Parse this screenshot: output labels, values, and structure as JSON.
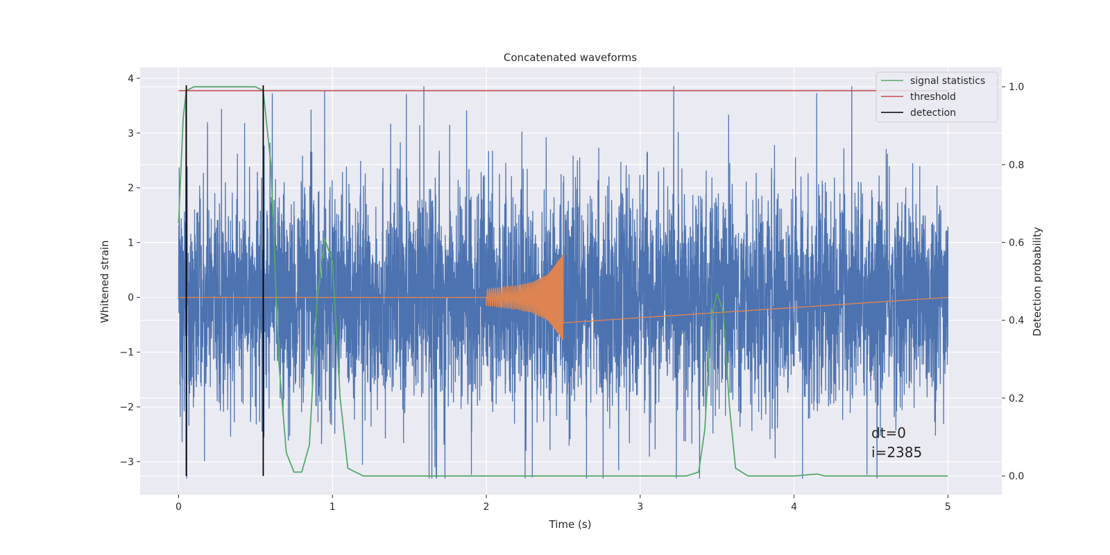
{
  "chart_data": {
    "type": "line",
    "title": "Concatenated waveforms",
    "xlabel": "Time (s)",
    "ylabel": "Whitened strain",
    "y2label": "Detection probability",
    "xlim": [
      -0.25,
      5.35
    ],
    "ylim": [
      -3.6,
      4.2
    ],
    "y2lim": [
      -0.048,
      1.05
    ],
    "xticks": [
      "0",
      "1",
      "2",
      "3",
      "4",
      "5"
    ],
    "yticks": [
      "−3",
      "−2",
      "−1",
      "0",
      "1",
      "2",
      "3",
      "4"
    ],
    "y2ticks": [
      "0.0",
      "0.2",
      "0.4",
      "0.6",
      "0.8",
      "1.0"
    ],
    "grid": true,
    "legend_position": "top-right",
    "annotations": [
      "dt=0",
      "i=2385"
    ],
    "colors": {
      "strain": "#4c72b0",
      "injected": "#dd8452",
      "signal_statistics": "#55a868",
      "threshold": "#c44e52",
      "detection": "#000000",
      "background": "#eaeaf2"
    },
    "series": [
      {
        "id": "strain",
        "description_axis": "left",
        "x_range": [
          0,
          5
        ],
        "amplitude_range": [
          -3.3,
          3.85
        ]
      },
      {
        "id": "injected",
        "description_axis": "left",
        "x": [
          2.0,
          2.1,
          2.2,
          2.3,
          2.4,
          2.45,
          2.5
        ],
        "envelope": [
          0.15,
          0.18,
          0.22,
          0.28,
          0.42,
          0.6,
          0.8
        ]
      },
      {
        "name": "signal statistics",
        "description_axis": "right",
        "x": [
          0.0,
          0.03,
          0.05,
          0.1,
          0.3,
          0.5,
          0.55,
          0.6,
          0.65,
          0.7,
          0.75,
          0.8,
          0.85,
          0.9,
          0.95,
          1.0,
          1.05,
          1.1,
          1.2,
          2.0,
          3.0,
          3.3,
          3.38,
          3.42,
          3.46,
          3.5,
          3.54,
          3.58,
          3.62,
          3.7,
          4.0,
          4.15,
          4.2,
          4.5,
          5.0
        ],
        "y": [
          0.65,
          0.92,
          0.99,
          1.0,
          1.0,
          1.0,
          0.99,
          0.8,
          0.3,
          0.06,
          0.01,
          0.01,
          0.08,
          0.45,
          0.61,
          0.55,
          0.2,
          0.02,
          0.0,
          0.0,
          0.0,
          0.0,
          0.01,
          0.12,
          0.4,
          0.47,
          0.42,
          0.18,
          0.02,
          0.0,
          0.0,
          0.005,
          0.0,
          0.0,
          0.0
        ]
      },
      {
        "name": "threshold",
        "description_axis": "right",
        "x": [
          0,
          5
        ],
        "y": [
          0.99,
          0.99
        ]
      },
      {
        "name": "detection",
        "description_axis": "right",
        "x_positions": [
          0.05,
          0.55
        ],
        "y_range": [
          0,
          1.0
        ]
      }
    ],
    "legend": [
      "signal statistics",
      "threshold",
      "detection"
    ]
  }
}
